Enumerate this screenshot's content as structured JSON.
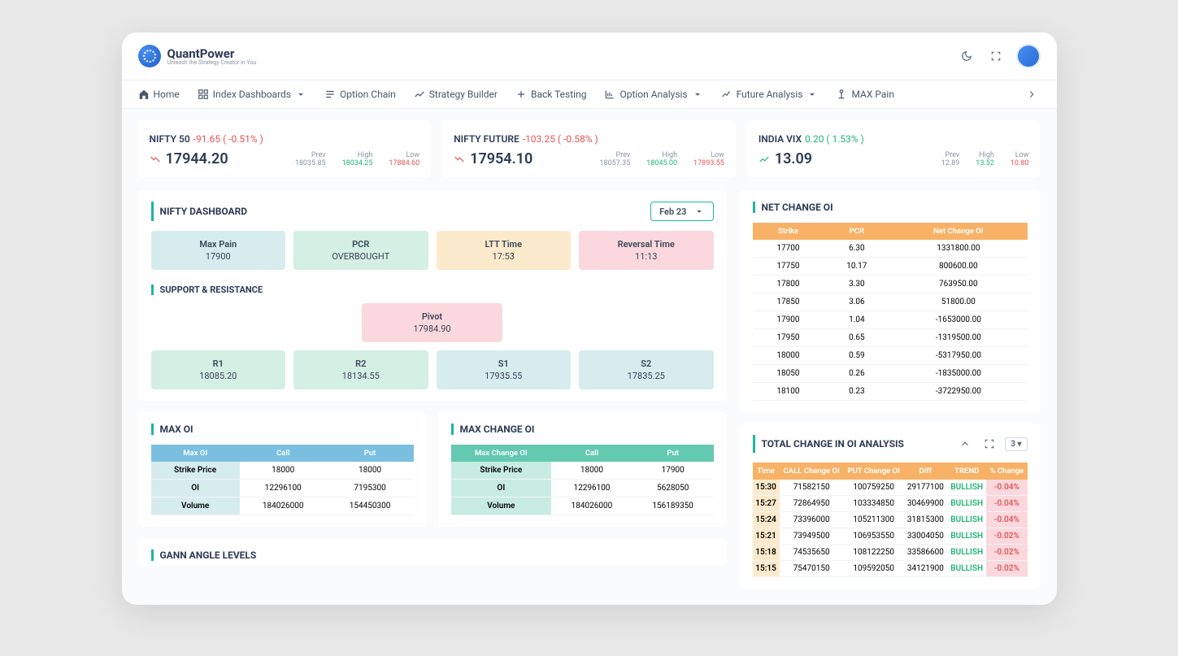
{
  "brand": {
    "name": "QuantPower",
    "tagline": "Unleash the Strategy Creator in You"
  },
  "nav": {
    "home": "Home",
    "index_dashboards": "Index Dashboards",
    "option_chain": "Option Chain",
    "strategy_builder": "Strategy Builder",
    "back_testing": "Back Testing",
    "option_analysis": "Option Analysis",
    "future_analysis": "Future Analysis",
    "max_pain": "MAX Pain"
  },
  "tickers": {
    "nifty50": {
      "name": "NIFTY 50",
      "chg": "-91.65 ( -0.51% )",
      "price": "17944.20",
      "prev_lab": "Prev",
      "prev": "18035.85",
      "high_lab": "High",
      "high": "18034.25",
      "low_lab": "Low",
      "low": "17884.60",
      "dir": "down"
    },
    "niftyfuture": {
      "name": "NIFTY FUTURE",
      "chg": "-103.25 ( -0.58% )",
      "price": "17954.10",
      "prev_lab": "Prev",
      "prev": "18057.35",
      "high_lab": "High",
      "high": "18045.00",
      "low_lab": "Low",
      "low": "17893.55",
      "dir": "down"
    },
    "vix": {
      "name": "INDIA VIX",
      "chg": "0.20 ( 1.53% )",
      "price": "13.09",
      "prev_lab": "Prev",
      "prev": "12.89",
      "high_lab": "High",
      "high": "13.52",
      "low_lab": "Low",
      "low": "10.80",
      "dir": "up"
    }
  },
  "dashboard": {
    "title": "NIFTY DASHBOARD",
    "date": "Feb 23",
    "tiles": {
      "maxpain": {
        "lab": "Max Pain",
        "val": "17900"
      },
      "pcr": {
        "lab": "PCR",
        "val": "OVERBOUGHT"
      },
      "ltt": {
        "lab": "LTT Time",
        "val": "17:53"
      },
      "rev": {
        "lab": "Reversal Time",
        "val": "11:13"
      }
    },
    "sr_title": "SUPPORT & RESISTANCE",
    "pivot": {
      "lab": "Pivot",
      "val": "17984.90"
    },
    "sr": {
      "r1": {
        "lab": "R1",
        "val": "18085.20"
      },
      "r2": {
        "lab": "R2",
        "val": "18134.55"
      },
      "s1": {
        "lab": "S1",
        "val": "17935.55"
      },
      "s2": {
        "lab": "S2",
        "val": "17835.25"
      }
    }
  },
  "maxoi": {
    "title": "MAX OI",
    "headers": {
      "c0": "Max OI",
      "c1": "Call",
      "c2": "Put"
    },
    "rows": {
      "r0": {
        "lab": "Strike Price",
        "call": "18000",
        "put": "18000"
      },
      "r1": {
        "lab": "OI",
        "call": "12296100",
        "put": "7195300"
      },
      "r2": {
        "lab": "Volume",
        "call": "184026000",
        "put": "154450300"
      }
    }
  },
  "maxchgoi": {
    "title": "MAX CHANGE OI",
    "headers": {
      "c0": "Max Change OI",
      "c1": "Call",
      "c2": "Put"
    },
    "rows": {
      "r0": {
        "lab": "Strike Price",
        "call": "18000",
        "put": "17900"
      },
      "r1": {
        "lab": "OI",
        "call": "12296100",
        "put": "5628050"
      },
      "r2": {
        "lab": "Volume",
        "call": "184026000",
        "put": "156189350"
      }
    }
  },
  "gann": {
    "title": "GANN ANGLE LEVELS"
  },
  "netchg": {
    "title": "NET CHANGE OI",
    "headers": {
      "c0": "Strike",
      "c1": "PCR",
      "c2": "Net Change OI"
    },
    "rows": [
      {
        "s": "17700",
        "p": "6.30",
        "n": "1331800.00"
      },
      {
        "s": "17750",
        "p": "10.17",
        "n": "800600.00"
      },
      {
        "s": "17800",
        "p": "3.30",
        "n": "763950.00"
      },
      {
        "s": "17850",
        "p": "3.06",
        "n": "51800.00"
      },
      {
        "s": "17900",
        "p": "1.04",
        "n": "-1653000.00"
      },
      {
        "s": "17950",
        "p": "0.65",
        "n": "-1319500.00"
      },
      {
        "s": "18000",
        "p": "0.59",
        "n": "-5317950.00"
      },
      {
        "s": "18050",
        "p": "0.26",
        "n": "-1835000.00"
      },
      {
        "s": "18100",
        "p": "0.23",
        "n": "-3722950.00"
      }
    ]
  },
  "totalchg": {
    "title": "TOTAL CHANGE IN OI ANALYSIS",
    "sel": "3",
    "headers": {
      "c0": "Time",
      "c1": "CALL Change OI",
      "c2": "PUT Change OI",
      "c3": "Diff",
      "c4": "TREND",
      "c5": "% Change"
    },
    "rows": [
      {
        "t": "15:30",
        "c": "71582150",
        "p": "100759250",
        "d": "29177100",
        "tr": "BULLISH",
        "pc": "-0.04%"
      },
      {
        "t": "15:27",
        "c": "72864950",
        "p": "103334850",
        "d": "30469900",
        "tr": "BULLISH",
        "pc": "-0.04%"
      },
      {
        "t": "15:24",
        "c": "73396000",
        "p": "105211300",
        "d": "31815300",
        "tr": "BULLISH",
        "pc": "-0.04%"
      },
      {
        "t": "15:21",
        "c": "73949500",
        "p": "106953550",
        "d": "33004050",
        "tr": "BULLISH",
        "pc": "-0.02%"
      },
      {
        "t": "15:18",
        "c": "74535650",
        "p": "108122250",
        "d": "33586600",
        "tr": "BULLISH",
        "pc": "-0.02%"
      },
      {
        "t": "15:15",
        "c": "75470150",
        "p": "109592050",
        "d": "34121900",
        "tr": "BULLISH",
        "pc": "-0.02%"
      }
    ]
  }
}
